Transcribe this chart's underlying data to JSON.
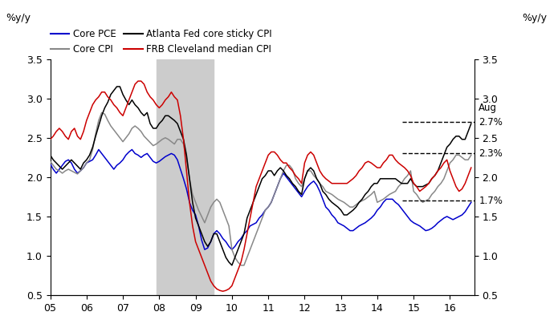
{
  "title_left": "%y/y",
  "title_right": "%y/y",
  "ylim": [
    0.5,
    3.5
  ],
  "recession_start": 2007.917,
  "recession_end": 2009.5,
  "annotation_text": "Aug",
  "annotations": [
    {
      "y": 2.7,
      "label": "2.7%"
    },
    {
      "y": 2.3,
      "label": "2.3%"
    },
    {
      "y": 1.7,
      "label": "1.7%"
    }
  ],
  "legend": [
    {
      "label": "Core PCE",
      "color": "#0000cc",
      "lw": 1.5
    },
    {
      "label": "Core CPI",
      "color": "#888888",
      "lw": 1.5
    },
    {
      "label": "Atlanta Fed core sticky CPI",
      "color": "#000000",
      "lw": 1.5
    },
    {
      "label": "FRB Cleveland median CPI",
      "color": "#cc0000",
      "lw": 1.5
    }
  ],
  "core_pce": {
    "color": "#0000cc",
    "x": [
      2005.0,
      2005.083,
      2005.167,
      2005.25,
      2005.333,
      2005.417,
      2005.5,
      2005.583,
      2005.667,
      2005.75,
      2005.833,
      2005.917,
      2006.0,
      2006.083,
      2006.167,
      2006.25,
      2006.333,
      2006.417,
      2006.5,
      2006.583,
      2006.667,
      2006.75,
      2006.833,
      2006.917,
      2007.0,
      2007.083,
      2007.167,
      2007.25,
      2007.333,
      2007.417,
      2007.5,
      2007.583,
      2007.667,
      2007.75,
      2007.833,
      2007.917,
      2008.0,
      2008.083,
      2008.167,
      2008.25,
      2008.333,
      2008.417,
      2008.5,
      2008.583,
      2008.667,
      2008.75,
      2008.833,
      2008.917,
      2009.0,
      2009.083,
      2009.167,
      2009.25,
      2009.333,
      2009.417,
      2009.5,
      2009.583,
      2009.667,
      2009.75,
      2009.833,
      2009.917,
      2010.0,
      2010.083,
      2010.167,
      2010.25,
      2010.333,
      2010.417,
      2010.5,
      2010.583,
      2010.667,
      2010.75,
      2010.833,
      2010.917,
      2011.0,
      2011.083,
      2011.167,
      2011.25,
      2011.333,
      2011.417,
      2011.5,
      2011.583,
      2011.667,
      2011.75,
      2011.833,
      2011.917,
      2012.0,
      2012.083,
      2012.167,
      2012.25,
      2012.333,
      2012.417,
      2012.5,
      2012.583,
      2012.667,
      2012.75,
      2012.833,
      2012.917,
      2013.0,
      2013.083,
      2013.167,
      2013.25,
      2013.333,
      2013.417,
      2013.5,
      2013.583,
      2013.667,
      2013.75,
      2013.833,
      2013.917,
      2014.0,
      2014.083,
      2014.167,
      2014.25,
      2014.333,
      2014.417,
      2014.5,
      2014.583,
      2014.667,
      2014.75,
      2014.833,
      2014.917,
      2015.0,
      2015.083,
      2015.167,
      2015.25,
      2015.333,
      2015.417,
      2015.5,
      2015.583,
      2015.667,
      2015.75,
      2015.833,
      2015.917,
      2016.0,
      2016.083,
      2016.167,
      2016.25,
      2016.333,
      2016.417,
      2016.5,
      2016.583
    ],
    "y": [
      2.17,
      2.1,
      2.05,
      2.1,
      2.15,
      2.2,
      2.22,
      2.18,
      2.1,
      2.05,
      2.08,
      2.12,
      2.18,
      2.2,
      2.22,
      2.28,
      2.35,
      2.3,
      2.25,
      2.2,
      2.15,
      2.1,
      2.15,
      2.18,
      2.22,
      2.28,
      2.32,
      2.35,
      2.3,
      2.28,
      2.25,
      2.28,
      2.3,
      2.25,
      2.2,
      2.18,
      2.2,
      2.23,
      2.26,
      2.28,
      2.3,
      2.28,
      2.22,
      2.1,
      1.98,
      1.85,
      1.68,
      1.58,
      1.52,
      1.38,
      1.2,
      1.08,
      1.1,
      1.18,
      1.28,
      1.32,
      1.28,
      1.22,
      1.18,
      1.12,
      1.08,
      1.12,
      1.18,
      1.22,
      1.28,
      1.32,
      1.38,
      1.4,
      1.42,
      1.48,
      1.52,
      1.58,
      1.62,
      1.68,
      1.78,
      1.88,
      1.98,
      2.05,
      2.0,
      1.95,
      1.9,
      1.85,
      1.8,
      1.75,
      1.82,
      1.88,
      1.92,
      1.95,
      1.9,
      1.82,
      1.72,
      1.62,
      1.58,
      1.52,
      1.48,
      1.42,
      1.4,
      1.38,
      1.35,
      1.32,
      1.32,
      1.35,
      1.38,
      1.4,
      1.42,
      1.45,
      1.48,
      1.52,
      1.58,
      1.62,
      1.68,
      1.72,
      1.72,
      1.72,
      1.68,
      1.65,
      1.6,
      1.55,
      1.5,
      1.45,
      1.42,
      1.4,
      1.38,
      1.35,
      1.32,
      1.33,
      1.35,
      1.38,
      1.42,
      1.45,
      1.48,
      1.5,
      1.48,
      1.46,
      1.48,
      1.5,
      1.52,
      1.56,
      1.62,
      1.68
    ]
  },
  "core_cpi": {
    "color": "#888888",
    "x": [
      2005.0,
      2005.083,
      2005.167,
      2005.25,
      2005.333,
      2005.417,
      2005.5,
      2005.583,
      2005.667,
      2005.75,
      2005.833,
      2005.917,
      2006.0,
      2006.083,
      2006.167,
      2006.25,
      2006.333,
      2006.417,
      2006.5,
      2006.583,
      2006.667,
      2006.75,
      2006.833,
      2006.917,
      2007.0,
      2007.083,
      2007.167,
      2007.25,
      2007.333,
      2007.417,
      2007.5,
      2007.583,
      2007.667,
      2007.75,
      2007.833,
      2007.917,
      2008.0,
      2008.083,
      2008.167,
      2008.25,
      2008.333,
      2008.417,
      2008.5,
      2008.583,
      2008.667,
      2008.75,
      2008.833,
      2008.917,
      2009.0,
      2009.083,
      2009.167,
      2009.25,
      2009.333,
      2009.417,
      2009.5,
      2009.583,
      2009.667,
      2009.75,
      2009.833,
      2009.917,
      2010.0,
      2010.083,
      2010.167,
      2010.25,
      2010.333,
      2010.417,
      2010.5,
      2010.583,
      2010.667,
      2010.75,
      2010.833,
      2010.917,
      2011.0,
      2011.083,
      2011.167,
      2011.25,
      2011.333,
      2011.417,
      2011.5,
      2011.583,
      2011.667,
      2011.75,
      2011.833,
      2011.917,
      2012.0,
      2012.083,
      2012.167,
      2012.25,
      2012.333,
      2012.417,
      2012.5,
      2012.583,
      2012.667,
      2012.75,
      2012.833,
      2012.917,
      2013.0,
      2013.083,
      2013.167,
      2013.25,
      2013.333,
      2013.417,
      2013.5,
      2013.583,
      2013.667,
      2013.75,
      2013.833,
      2013.917,
      2014.0,
      2014.083,
      2014.167,
      2014.25,
      2014.333,
      2014.417,
      2014.5,
      2014.583,
      2014.667,
      2014.75,
      2014.833,
      2014.917,
      2015.0,
      2015.083,
      2015.167,
      2015.25,
      2015.333,
      2015.417,
      2015.5,
      2015.583,
      2015.667,
      2015.75,
      2015.833,
      2015.917,
      2016.0,
      2016.083,
      2016.167,
      2016.25,
      2016.333,
      2016.417,
      2016.5,
      2016.583
    ],
    "y": [
      2.2,
      2.15,
      2.1,
      2.08,
      2.05,
      2.08,
      2.1,
      2.08,
      2.06,
      2.04,
      2.08,
      2.12,
      2.18,
      2.22,
      2.35,
      2.55,
      2.72,
      2.82,
      2.8,
      2.72,
      2.65,
      2.6,
      2.55,
      2.5,
      2.45,
      2.5,
      2.55,
      2.62,
      2.65,
      2.62,
      2.58,
      2.52,
      2.48,
      2.44,
      2.4,
      2.42,
      2.45,
      2.48,
      2.5,
      2.48,
      2.45,
      2.42,
      2.48,
      2.48,
      2.42,
      2.25,
      1.98,
      1.78,
      1.68,
      1.58,
      1.5,
      1.42,
      1.52,
      1.62,
      1.68,
      1.72,
      1.68,
      1.58,
      1.48,
      1.38,
      1.08,
      0.98,
      0.92,
      0.88,
      0.88,
      0.98,
      1.08,
      1.18,
      1.28,
      1.38,
      1.48,
      1.58,
      1.62,
      1.68,
      1.78,
      1.88,
      1.98,
      2.08,
      2.15,
      2.15,
      2.1,
      1.98,
      1.92,
      1.88,
      1.98,
      2.08,
      2.08,
      2.02,
      1.98,
      1.92,
      1.88,
      1.82,
      1.8,
      1.78,
      1.75,
      1.72,
      1.7,
      1.68,
      1.65,
      1.62,
      1.62,
      1.65,
      1.68,
      1.7,
      1.72,
      1.75,
      1.78,
      1.82,
      1.68,
      1.7,
      1.72,
      1.75,
      1.78,
      1.8,
      1.82,
      1.88,
      1.92,
      1.98,
      2.02,
      2.08,
      1.82,
      1.78,
      1.72,
      1.68,
      1.7,
      1.72,
      1.78,
      1.82,
      1.88,
      1.92,
      1.98,
      2.08,
      2.18,
      2.22,
      2.28,
      2.28,
      2.25,
      2.22,
      2.22,
      2.28
    ]
  },
  "atlanta_fed": {
    "color": "#000000",
    "x": [
      2005.0,
      2005.083,
      2005.167,
      2005.25,
      2005.333,
      2005.417,
      2005.5,
      2005.583,
      2005.667,
      2005.75,
      2005.833,
      2005.917,
      2006.0,
      2006.083,
      2006.167,
      2006.25,
      2006.333,
      2006.417,
      2006.5,
      2006.583,
      2006.667,
      2006.75,
      2006.833,
      2006.917,
      2007.0,
      2007.083,
      2007.167,
      2007.25,
      2007.333,
      2007.417,
      2007.5,
      2007.583,
      2007.667,
      2007.75,
      2007.833,
      2007.917,
      2008.0,
      2008.083,
      2008.167,
      2008.25,
      2008.333,
      2008.417,
      2008.5,
      2008.583,
      2008.667,
      2008.75,
      2008.833,
      2008.917,
      2009.0,
      2009.083,
      2009.167,
      2009.25,
      2009.333,
      2009.417,
      2009.5,
      2009.583,
      2009.667,
      2009.75,
      2009.833,
      2009.917,
      2010.0,
      2010.083,
      2010.167,
      2010.25,
      2010.333,
      2010.417,
      2010.5,
      2010.583,
      2010.667,
      2010.75,
      2010.833,
      2010.917,
      2011.0,
      2011.083,
      2011.167,
      2011.25,
      2011.333,
      2011.417,
      2011.5,
      2011.583,
      2011.667,
      2011.75,
      2011.833,
      2011.917,
      2012.0,
      2012.083,
      2012.167,
      2012.25,
      2012.333,
      2012.417,
      2012.5,
      2012.583,
      2012.667,
      2012.75,
      2012.833,
      2012.917,
      2013.0,
      2013.083,
      2013.167,
      2013.25,
      2013.333,
      2013.417,
      2013.5,
      2013.583,
      2013.667,
      2013.75,
      2013.833,
      2013.917,
      2014.0,
      2014.083,
      2014.167,
      2014.25,
      2014.333,
      2014.417,
      2014.5,
      2014.583,
      2014.667,
      2014.75,
      2014.833,
      2014.917,
      2015.0,
      2015.083,
      2015.167,
      2015.25,
      2015.333,
      2015.417,
      2015.5,
      2015.583,
      2015.667,
      2015.75,
      2015.833,
      2015.917,
      2016.0,
      2016.083,
      2016.167,
      2016.25,
      2016.333,
      2016.417,
      2016.5,
      2016.583
    ],
    "y": [
      2.28,
      2.22,
      2.18,
      2.14,
      2.1,
      2.14,
      2.18,
      2.22,
      2.18,
      2.14,
      2.1,
      2.18,
      2.22,
      2.28,
      2.38,
      2.52,
      2.65,
      2.78,
      2.88,
      2.95,
      3.05,
      3.1,
      3.15,
      3.15,
      3.05,
      2.98,
      2.92,
      2.98,
      2.92,
      2.88,
      2.82,
      2.78,
      2.82,
      2.68,
      2.62,
      2.62,
      2.68,
      2.72,
      2.78,
      2.78,
      2.75,
      2.72,
      2.68,
      2.58,
      2.48,
      2.28,
      1.98,
      1.68,
      1.48,
      1.38,
      1.28,
      1.18,
      1.12,
      1.18,
      1.28,
      1.28,
      1.18,
      1.08,
      0.98,
      0.92,
      0.88,
      0.98,
      1.08,
      1.18,
      1.28,
      1.48,
      1.58,
      1.68,
      1.78,
      1.88,
      1.98,
      2.02,
      2.08,
      2.08,
      2.02,
      2.08,
      2.12,
      2.08,
      2.02,
      1.98,
      1.92,
      1.88,
      1.82,
      1.78,
      1.98,
      2.08,
      2.12,
      2.08,
      1.98,
      1.92,
      1.82,
      1.78,
      1.72,
      1.68,
      1.65,
      1.62,
      1.58,
      1.52,
      1.52,
      1.55,
      1.58,
      1.62,
      1.68,
      1.72,
      1.78,
      1.82,
      1.88,
      1.92,
      1.92,
      1.98,
      1.98,
      1.98,
      1.98,
      1.98,
      1.98,
      1.95,
      1.92,
      1.92,
      1.92,
      1.98,
      1.92,
      1.88,
      1.88,
      1.88,
      1.9,
      1.92,
      1.98,
      2.02,
      2.08,
      2.18,
      2.28,
      2.38,
      2.42,
      2.48,
      2.52,
      2.52,
      2.48,
      2.48,
      2.58,
      2.68
    ]
  },
  "frb_cleveland": {
    "color": "#cc0000",
    "x": [
      2005.0,
      2005.083,
      2005.167,
      2005.25,
      2005.333,
      2005.417,
      2005.5,
      2005.583,
      2005.667,
      2005.75,
      2005.833,
      2005.917,
      2006.0,
      2006.083,
      2006.167,
      2006.25,
      2006.333,
      2006.417,
      2006.5,
      2006.583,
      2006.667,
      2006.75,
      2006.833,
      2006.917,
      2007.0,
      2007.083,
      2007.167,
      2007.25,
      2007.333,
      2007.417,
      2007.5,
      2007.583,
      2007.667,
      2007.75,
      2007.833,
      2007.917,
      2008.0,
      2008.083,
      2008.167,
      2008.25,
      2008.333,
      2008.417,
      2008.5,
      2008.583,
      2008.667,
      2008.75,
      2008.833,
      2008.917,
      2009.0,
      2009.083,
      2009.167,
      2009.25,
      2009.333,
      2009.417,
      2009.5,
      2009.583,
      2009.667,
      2009.75,
      2009.833,
      2009.917,
      2010.0,
      2010.083,
      2010.167,
      2010.25,
      2010.333,
      2010.417,
      2010.5,
      2010.583,
      2010.667,
      2010.75,
      2010.833,
      2010.917,
      2011.0,
      2011.083,
      2011.167,
      2011.25,
      2011.333,
      2011.417,
      2011.5,
      2011.583,
      2011.667,
      2011.75,
      2011.833,
      2011.917,
      2012.0,
      2012.083,
      2012.167,
      2012.25,
      2012.333,
      2012.417,
      2012.5,
      2012.583,
      2012.667,
      2012.75,
      2012.833,
      2012.917,
      2013.0,
      2013.083,
      2013.167,
      2013.25,
      2013.333,
      2013.417,
      2013.5,
      2013.583,
      2013.667,
      2013.75,
      2013.833,
      2013.917,
      2014.0,
      2014.083,
      2014.167,
      2014.25,
      2014.333,
      2014.417,
      2014.5,
      2014.583,
      2014.667,
      2014.75,
      2014.833,
      2014.917,
      2015.0,
      2015.083,
      2015.167,
      2015.25,
      2015.333,
      2015.417,
      2015.5,
      2015.583,
      2015.667,
      2015.75,
      2015.833,
      2015.917,
      2016.0,
      2016.083,
      2016.167,
      2016.25,
      2016.333,
      2016.417,
      2016.5,
      2016.583
    ],
    "y": [
      2.48,
      2.52,
      2.58,
      2.62,
      2.58,
      2.52,
      2.48,
      2.58,
      2.62,
      2.52,
      2.48,
      2.58,
      2.72,
      2.82,
      2.92,
      2.98,
      3.02,
      3.08,
      3.08,
      3.02,
      2.98,
      2.92,
      2.88,
      2.82,
      2.78,
      2.88,
      2.98,
      3.08,
      3.18,
      3.22,
      3.22,
      3.18,
      3.08,
      3.02,
      2.98,
      2.92,
      2.88,
      2.92,
      2.98,
      3.02,
      3.08,
      3.02,
      2.98,
      2.78,
      2.48,
      2.08,
      1.68,
      1.38,
      1.18,
      1.08,
      0.98,
      0.88,
      0.78,
      0.68,
      0.62,
      0.58,
      0.56,
      0.55,
      0.56,
      0.58,
      0.62,
      0.72,
      0.82,
      0.92,
      1.08,
      1.28,
      1.48,
      1.68,
      1.88,
      1.98,
      2.08,
      2.18,
      2.28,
      2.32,
      2.32,
      2.28,
      2.22,
      2.18,
      2.18,
      2.12,
      2.08,
      2.02,
      1.98,
      1.92,
      2.18,
      2.28,
      2.32,
      2.28,
      2.18,
      2.08,
      2.02,
      1.98,
      1.95,
      1.92,
      1.92,
      1.92,
      1.92,
      1.92,
      1.92,
      1.95,
      1.98,
      2.02,
      2.08,
      2.12,
      2.18,
      2.2,
      2.18,
      2.15,
      2.12,
      2.12,
      2.18,
      2.22,
      2.28,
      2.28,
      2.22,
      2.18,
      2.15,
      2.12,
      2.08,
      2.02,
      1.92,
      1.88,
      1.82,
      1.85,
      1.88,
      1.92,
      1.98,
      2.02,
      2.08,
      2.12,
      2.18,
      2.22,
      2.08,
      1.98,
      1.88,
      1.82,
      1.85,
      1.92,
      2.02,
      2.12
    ]
  },
  "xticks": [
    2005,
    2006,
    2007,
    2008,
    2009,
    2010,
    2011,
    2012,
    2013,
    2014,
    2015,
    2016
  ],
  "xticklabels": [
    "05",
    "06",
    "07",
    "08",
    "09",
    "10",
    "11",
    "12",
    "13",
    "14",
    "15",
    "16"
  ],
  "yticks": [
    0.5,
    1.0,
    1.5,
    2.0,
    2.5,
    3.0,
    3.5
  ],
  "background_color": "#ffffff",
  "recession_color": "#cccccc"
}
